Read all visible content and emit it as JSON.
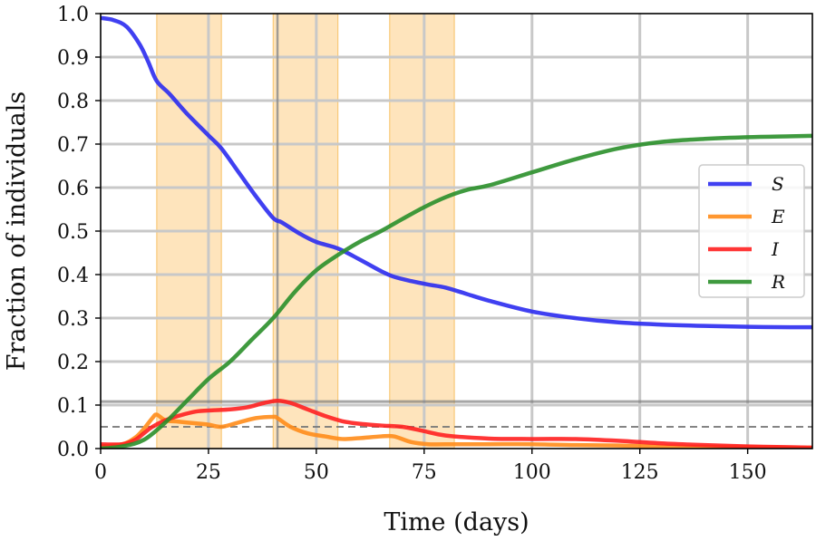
{
  "chart_data": {
    "type": "line",
    "xlabel": "Time (days)",
    "ylabel": "Fraction of individuals",
    "xlim": [
      0,
      165
    ],
    "ylim": [
      0,
      1.0
    ],
    "x_ticks": [
      0,
      25,
      50,
      75,
      100,
      125,
      150
    ],
    "y_ticks": [
      0.0,
      0.1,
      0.2,
      0.3,
      0.4,
      0.5,
      0.6,
      0.7,
      0.8,
      0.9,
      1.0
    ],
    "x_tick_labels": [
      "0",
      "25",
      "50",
      "75",
      "100",
      "125",
      "150"
    ],
    "y_tick_labels": [
      "0.0",
      "0.1",
      "0.2",
      "0.3",
      "0.4",
      "0.5",
      "0.6",
      "0.7",
      "0.8",
      "0.9",
      "1.0"
    ],
    "grid": true,
    "legend_position": "right",
    "shaded_intervals": [
      [
        13,
        28
      ],
      [
        40,
        55
      ],
      [
        67,
        82
      ]
    ],
    "shade_color": "#fdd9a0",
    "vertical_lines": [
      41
    ],
    "horizontal_lines": [
      {
        "y": 0.108,
        "style": "solid"
      },
      {
        "y": 0.05,
        "style": "dashed"
      }
    ],
    "series": [
      {
        "name": "S",
        "color": "#2b2bf0",
        "x": [
          0,
          3,
          6,
          9,
          11,
          13,
          16,
          20,
          25,
          28,
          32,
          36,
          40,
          42,
          46,
          50,
          55,
          60,
          65,
          68,
          72,
          76,
          80,
          85,
          90,
          100,
          110,
          120,
          130,
          140,
          150,
          160,
          165
        ],
        "y": [
          0.99,
          0.985,
          0.97,
          0.93,
          0.89,
          0.845,
          0.815,
          0.77,
          0.72,
          0.69,
          0.635,
          0.58,
          0.53,
          0.52,
          0.495,
          0.475,
          0.46,
          0.435,
          0.408,
          0.395,
          0.385,
          0.377,
          0.37,
          0.355,
          0.34,
          0.315,
          0.3,
          0.29,
          0.285,
          0.282,
          0.28,
          0.279,
          0.279
        ]
      },
      {
        "name": "E",
        "color": "#ff8c1a",
        "x": [
          0,
          5,
          8,
          10,
          12,
          13,
          15,
          18,
          22,
          25,
          28,
          32,
          36,
          40,
          41,
          44,
          48,
          52,
          56,
          60,
          65,
          68,
          72,
          76,
          80,
          90,
          100,
          110,
          120,
          130,
          140,
          150,
          160,
          165
        ],
        "y": [
          0.005,
          0.01,
          0.025,
          0.045,
          0.07,
          0.078,
          0.065,
          0.062,
          0.058,
          0.055,
          0.05,
          0.06,
          0.07,
          0.073,
          0.07,
          0.05,
          0.035,
          0.028,
          0.022,
          0.024,
          0.028,
          0.028,
          0.015,
          0.01,
          0.01,
          0.01,
          0.01,
          0.008,
          0.007,
          0.005,
          0.004,
          0.003,
          0.002,
          0.002
        ]
      },
      {
        "name": "I",
        "color": "#ff2020",
        "x": [
          0,
          5,
          8,
          10,
          12,
          15,
          18,
          22,
          26,
          30,
          34,
          38,
          41,
          44,
          48,
          52,
          56,
          60,
          65,
          70,
          75,
          80,
          90,
          100,
          110,
          120,
          130,
          140,
          150,
          160,
          165
        ],
        "y": [
          0.01,
          0.01,
          0.02,
          0.035,
          0.05,
          0.065,
          0.075,
          0.085,
          0.088,
          0.09,
          0.095,
          0.105,
          0.11,
          0.105,
          0.09,
          0.075,
          0.063,
          0.057,
          0.053,
          0.05,
          0.04,
          0.03,
          0.023,
          0.022,
          0.022,
          0.018,
          0.012,
          0.008,
          0.005,
          0.003,
          0.002
        ]
      },
      {
        "name": "R",
        "color": "#2a8f2a",
        "x": [
          0,
          5,
          10,
          15,
          20,
          25,
          30,
          35,
          40,
          45,
          50,
          55,
          60,
          65,
          70,
          75,
          80,
          85,
          90,
          100,
          110,
          120,
          130,
          140,
          150,
          160,
          165
        ],
        "y": [
          0.0,
          0.005,
          0.02,
          0.06,
          0.11,
          0.16,
          0.2,
          0.25,
          0.3,
          0.36,
          0.41,
          0.445,
          0.475,
          0.5,
          0.528,
          0.555,
          0.578,
          0.595,
          0.605,
          0.635,
          0.665,
          0.69,
          0.705,
          0.712,
          0.716,
          0.718,
          0.719
        ]
      }
    ]
  }
}
